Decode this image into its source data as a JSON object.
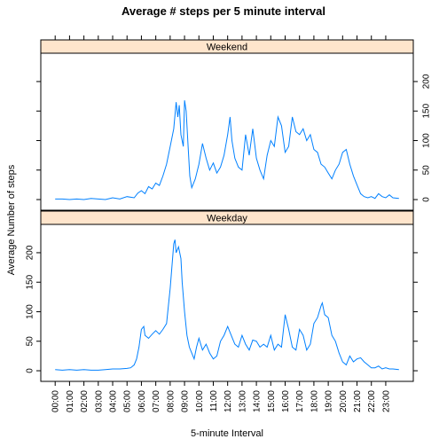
{
  "chart_data": {
    "type": "line",
    "title": "Average # steps per 5 minute interval",
    "xlabel": "5-minute Interval",
    "ylabel": "Average Number of steps",
    "x_tick_labels": [
      "00:00",
      "01:00",
      "02:00",
      "03:00",
      "04:00",
      "05:00",
      "06:00",
      "07:00",
      "08:00",
      "09:00",
      "10:00",
      "11:00",
      "12:00",
      "13:00",
      "14:00",
      "15:00",
      "16:00",
      "17:00",
      "18:00",
      "19:00",
      "20:00",
      "21:00",
      "22:00",
      "23:00"
    ],
    "x_tick_minutes": [
      0,
      60,
      120,
      180,
      240,
      300,
      360,
      420,
      480,
      540,
      600,
      660,
      720,
      780,
      840,
      900,
      960,
      1020,
      1080,
      1140,
      1200,
      1260,
      1320,
      1380
    ],
    "xlim_minutes": [
      -60,
      1495
    ],
    "y_ticks": [
      0,
      50,
      100,
      150,
      200
    ],
    "ylim": [
      -18,
      248
    ],
    "line_color": "#0080ff",
    "strip_color": "#ffe5cc",
    "panels": [
      {
        "name": "Weekend",
        "y_axis_side": "right",
        "points": [
          [
            0,
            1
          ],
          [
            30,
            1
          ],
          [
            60,
            0
          ],
          [
            90,
            1
          ],
          [
            120,
            0
          ],
          [
            150,
            2
          ],
          [
            180,
            1
          ],
          [
            210,
            0
          ],
          [
            240,
            3
          ],
          [
            270,
            1
          ],
          [
            300,
            5
          ],
          [
            330,
            3
          ],
          [
            345,
            11
          ],
          [
            360,
            15
          ],
          [
            375,
            10
          ],
          [
            390,
            22
          ],
          [
            405,
            18
          ],
          [
            420,
            28
          ],
          [
            435,
            24
          ],
          [
            450,
            40
          ],
          [
            465,
            60
          ],
          [
            480,
            90
          ],
          [
            495,
            120
          ],
          [
            505,
            165
          ],
          [
            512,
            140
          ],
          [
            518,
            160
          ],
          [
            525,
            110
          ],
          [
            535,
            90
          ],
          [
            540,
            168
          ],
          [
            547,
            150
          ],
          [
            555,
            90
          ],
          [
            562,
            40
          ],
          [
            570,
            20
          ],
          [
            585,
            35
          ],
          [
            600,
            60
          ],
          [
            615,
            95
          ],
          [
            630,
            70
          ],
          [
            645,
            50
          ],
          [
            660,
            62
          ],
          [
            675,
            45
          ],
          [
            690,
            55
          ],
          [
            705,
            75
          ],
          [
            720,
            110
          ],
          [
            730,
            140
          ],
          [
            738,
            100
          ],
          [
            750,
            70
          ],
          [
            765,
            55
          ],
          [
            780,
            50
          ],
          [
            795,
            110
          ],
          [
            810,
            75
          ],
          [
            825,
            120
          ],
          [
            840,
            70
          ],
          [
            855,
            50
          ],
          [
            870,
            35
          ],
          [
            885,
            75
          ],
          [
            900,
            100
          ],
          [
            915,
            90
          ],
          [
            930,
            140
          ],
          [
            945,
            125
          ],
          [
            960,
            80
          ],
          [
            975,
            90
          ],
          [
            990,
            140
          ],
          [
            1005,
            115
          ],
          [
            1020,
            110
          ],
          [
            1035,
            120
          ],
          [
            1050,
            100
          ],
          [
            1065,
            110
          ],
          [
            1080,
            85
          ],
          [
            1095,
            80
          ],
          [
            1110,
            60
          ],
          [
            1125,
            55
          ],
          [
            1140,
            45
          ],
          [
            1155,
            35
          ],
          [
            1170,
            50
          ],
          [
            1185,
            60
          ],
          [
            1200,
            80
          ],
          [
            1215,
            85
          ],
          [
            1230,
            60
          ],
          [
            1245,
            40
          ],
          [
            1260,
            25
          ],
          [
            1275,
            10
          ],
          [
            1290,
            5
          ],
          [
            1305,
            3
          ],
          [
            1320,
            5
          ],
          [
            1335,
            2
          ],
          [
            1350,
            10
          ],
          [
            1365,
            5
          ],
          [
            1380,
            3
          ],
          [
            1395,
            8
          ],
          [
            1410,
            3
          ],
          [
            1435,
            2
          ]
        ]
      },
      {
        "name": "Weekday",
        "y_axis_side": "left",
        "points": [
          [
            0,
            2
          ],
          [
            30,
            1
          ],
          [
            60,
            2
          ],
          [
            90,
            1
          ],
          [
            120,
            2
          ],
          [
            150,
            1
          ],
          [
            180,
            1
          ],
          [
            210,
            2
          ],
          [
            240,
            3
          ],
          [
            270,
            3
          ],
          [
            300,
            4
          ],
          [
            315,
            5
          ],
          [
            330,
            10
          ],
          [
            340,
            20
          ],
          [
            350,
            40
          ],
          [
            360,
            70
          ],
          [
            370,
            75
          ],
          [
            375,
            60
          ],
          [
            390,
            55
          ],
          [
            405,
            62
          ],
          [
            420,
            68
          ],
          [
            435,
            62
          ],
          [
            450,
            70
          ],
          [
            465,
            80
          ],
          [
            480,
            140
          ],
          [
            495,
            215
          ],
          [
            500,
            222
          ],
          [
            505,
            200
          ],
          [
            515,
            210
          ],
          [
            525,
            190
          ],
          [
            530,
            150
          ],
          [
            540,
            100
          ],
          [
            550,
            60
          ],
          [
            560,
            40
          ],
          [
            570,
            30
          ],
          [
            580,
            20
          ],
          [
            590,
            40
          ],
          [
            600,
            55
          ],
          [
            615,
            35
          ],
          [
            630,
            45
          ],
          [
            645,
            30
          ],
          [
            660,
            20
          ],
          [
            675,
            25
          ],
          [
            690,
            50
          ],
          [
            705,
            60
          ],
          [
            720,
            75
          ],
          [
            735,
            60
          ],
          [
            750,
            45
          ],
          [
            765,
            40
          ],
          [
            780,
            60
          ],
          [
            795,
            45
          ],
          [
            810,
            35
          ],
          [
            825,
            52
          ],
          [
            840,
            50
          ],
          [
            855,
            40
          ],
          [
            870,
            45
          ],
          [
            885,
            40
          ],
          [
            900,
            60
          ],
          [
            915,
            35
          ],
          [
            930,
            45
          ],
          [
            945,
            40
          ],
          [
            960,
            95
          ],
          [
            975,
            70
          ],
          [
            990,
            40
          ],
          [
            1005,
            35
          ],
          [
            1020,
            70
          ],
          [
            1035,
            60
          ],
          [
            1050,
            35
          ],
          [
            1065,
            45
          ],
          [
            1080,
            80
          ],
          [
            1095,
            90
          ],
          [
            1110,
            110
          ],
          [
            1115,
            115
          ],
          [
            1125,
            95
          ],
          [
            1140,
            90
          ],
          [
            1155,
            60
          ],
          [
            1170,
            50
          ],
          [
            1185,
            30
          ],
          [
            1200,
            15
          ],
          [
            1215,
            10
          ],
          [
            1230,
            25
          ],
          [
            1245,
            15
          ],
          [
            1260,
            20
          ],
          [
            1275,
            22
          ],
          [
            1290,
            15
          ],
          [
            1305,
            10
          ],
          [
            1320,
            5
          ],
          [
            1335,
            5
          ],
          [
            1350,
            8
          ],
          [
            1365,
            3
          ],
          [
            1380,
            5
          ],
          [
            1395,
            3
          ],
          [
            1410,
            3
          ],
          [
            1435,
            2
          ]
        ]
      }
    ]
  }
}
